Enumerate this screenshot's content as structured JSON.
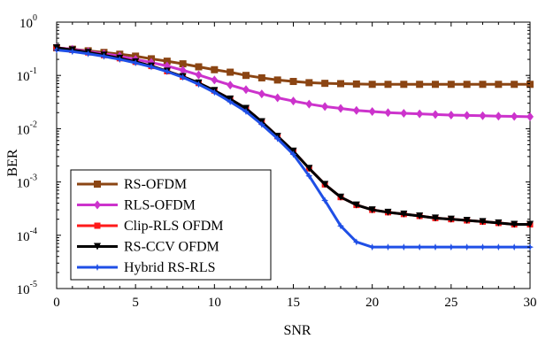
{
  "chart_data": {
    "type": "line",
    "xlabel": "SNR",
    "ylabel": "BER",
    "xlim": [
      0,
      30
    ],
    "ylim": [
      1e-05,
      1
    ],
    "yscale": "log",
    "grid": false,
    "legend_position": "bottom-left",
    "x_ticks": [
      "0",
      "5",
      "10",
      "15",
      "20",
      "25",
      "30"
    ],
    "y_ticks": [
      {
        "base": "10",
        "exp": "0",
        "value": 1
      },
      {
        "base": "10",
        "exp": "-1",
        "value": 0.1
      },
      {
        "base": "10",
        "exp": "-2",
        "value": 0.01
      },
      {
        "base": "10",
        "exp": "-3",
        "value": 0.001
      },
      {
        "base": "10",
        "exp": "-4",
        "value": 0.0001
      },
      {
        "base": "10",
        "exp": "-5",
        "value": 1e-05
      }
    ],
    "x": [
      0,
      1,
      2,
      3,
      4,
      5,
      6,
      7,
      8,
      9,
      10,
      11,
      12,
      13,
      14,
      15,
      16,
      17,
      18,
      19,
      20,
      21,
      22,
      23,
      24,
      25,
      26,
      27,
      28,
      29,
      30
    ],
    "series": [
      {
        "name": "RS-OFDM",
        "color": "#8b4513",
        "marker": "square",
        "values": [
          0.33,
          0.31,
          0.29,
          0.27,
          0.25,
          0.23,
          0.205,
          0.185,
          0.165,
          0.145,
          0.128,
          0.115,
          0.1,
          0.09,
          0.082,
          0.077,
          0.073,
          0.071,
          0.07,
          0.069,
          0.068,
          0.068,
          0.068,
          0.068,
          0.068,
          0.068,
          0.068,
          0.068,
          0.068,
          0.068,
          0.068
        ]
      },
      {
        "name": "RLS-OFDM",
        "color": "#cc33cc",
        "marker": "diamond",
        "values": [
          0.33,
          0.31,
          0.28,
          0.255,
          0.23,
          0.2,
          0.175,
          0.15,
          0.125,
          0.102,
          0.082,
          0.066,
          0.054,
          0.045,
          0.038,
          0.033,
          0.029,
          0.026,
          0.024,
          0.022,
          0.021,
          0.02,
          0.0195,
          0.019,
          0.0185,
          0.018,
          0.0178,
          0.0175,
          0.0172,
          0.017,
          0.0168
        ]
      },
      {
        "name": "Clip-RLS OFDM",
        "color": "#ff1a1a",
        "marker": "circle",
        "values": [
          0.33,
          0.3,
          0.27,
          0.24,
          0.21,
          0.18,
          0.15,
          0.12,
          0.095,
          0.072,
          0.052,
          0.036,
          0.024,
          0.0135,
          0.0072,
          0.0038,
          0.0018,
          0.0009,
          0.00052,
          0.00037,
          0.0003,
          0.00027,
          0.00025,
          0.00023,
          0.00021,
          0.0002,
          0.00019,
          0.00018,
          0.00017,
          0.00016,
          0.00016
        ]
      },
      {
        "name": "RS-CCV OFDM",
        "color": "#000000",
        "marker": "triangle-down",
        "values": [
          0.33,
          0.3,
          0.27,
          0.24,
          0.21,
          0.18,
          0.15,
          0.12,
          0.095,
          0.072,
          0.052,
          0.036,
          0.024,
          0.0135,
          0.0072,
          0.0038,
          0.0018,
          0.0009,
          0.00052,
          0.00037,
          0.0003,
          0.00027,
          0.00025,
          0.00023,
          0.00021,
          0.0002,
          0.00019,
          0.00018,
          0.00017,
          0.00016,
          0.00016
        ]
      },
      {
        "name": "Hybrid RS-RLS",
        "color": "#1f4fe6",
        "marker": "star",
        "values": [
          0.3,
          0.28,
          0.255,
          0.228,
          0.2,
          0.172,
          0.145,
          0.118,
          0.092,
          0.068,
          0.048,
          0.032,
          0.021,
          0.012,
          0.0065,
          0.0033,
          0.0013,
          0.00045,
          0.00015,
          7.5e-05,
          6e-05,
          6e-05,
          6e-05,
          6e-05,
          6e-05,
          6e-05,
          6e-05,
          6e-05,
          6e-05,
          6e-05,
          6e-05
        ]
      }
    ]
  }
}
